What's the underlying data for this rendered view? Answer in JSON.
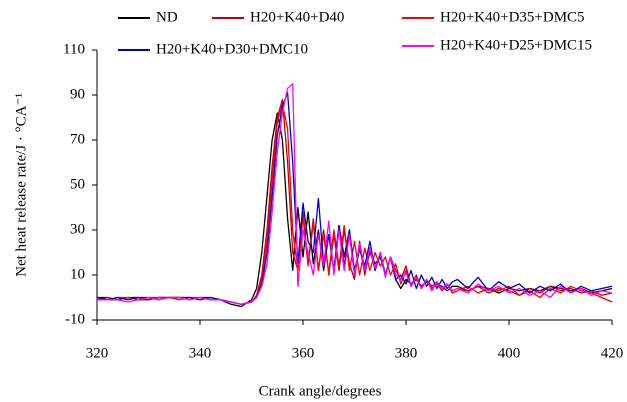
{
  "chart_data": {
    "type": "line",
    "x_label": "Crank angle/degrees",
    "y_label": "Net heat release rate/J · °CA⁻¹",
    "xlim": [
      320,
      420
    ],
    "xticks": [
      320,
      340,
      360,
      380,
      400,
      420
    ],
    "ylim": [
      -10,
      110
    ],
    "yticks": [
      -10,
      10,
      30,
      50,
      70,
      90,
      110
    ],
    "x": [
      320,
      322,
      324,
      326,
      328,
      330,
      332,
      334,
      336,
      338,
      340,
      342,
      344,
      346,
      348,
      350,
      351,
      352,
      353,
      354,
      355,
      356,
      357,
      358,
      359,
      360,
      361,
      362,
      363,
      364,
      365,
      366,
      367,
      368,
      369,
      370,
      371,
      372,
      373,
      374,
      375,
      376,
      377,
      378,
      379,
      380,
      381,
      382,
      383,
      384,
      385,
      386,
      387,
      388,
      389,
      390,
      392,
      394,
      396,
      398,
      400,
      402,
      404,
      406,
      408,
      410,
      412,
      414,
      416,
      418,
      420
    ],
    "series": [
      {
        "name": "ND",
        "color": "#000000",
        "values": [
          0,
          0,
          -1,
          0,
          0,
          -1,
          0,
          0,
          0,
          -1,
          0,
          0,
          -1,
          -3,
          -4,
          -1,
          4,
          20,
          45,
          70,
          82,
          70,
          35,
          12,
          40,
          18,
          38,
          15,
          30,
          12,
          28,
          12,
          32,
          18,
          30,
          10,
          22,
          12,
          20,
          15,
          18,
          10,
          18,
          8,
          4,
          8,
          6,
          8,
          5,
          7,
          4,
          6,
          5,
          3,
          5,
          5,
          3,
          5,
          4,
          2,
          4,
          3,
          4,
          3,
          5,
          4,
          3,
          4,
          2,
          3,
          4
        ]
      },
      {
        "name": "H20+K40+D40",
        "color": "#c00000",
        "values": [
          -1,
          0,
          -1,
          0,
          -1,
          -1,
          0,
          0,
          0,
          0,
          -1,
          0,
          -1,
          -2,
          -3,
          -2,
          1,
          10,
          30,
          58,
          80,
          88,
          60,
          20,
          12,
          38,
          15,
          35,
          12,
          30,
          10,
          28,
          12,
          30,
          15,
          8,
          25,
          10,
          22,
          12,
          20,
          10,
          18,
          12,
          8,
          14,
          5,
          10,
          4,
          8,
          5,
          7,
          4,
          6,
          3,
          4,
          3,
          5,
          2,
          4,
          3,
          1,
          4,
          2,
          5,
          3,
          4,
          2,
          3,
          1,
          2
        ]
      },
      {
        "name": "H20+K40+D35+DMC5",
        "color": "#ff0000",
        "values": [
          0,
          -1,
          0,
          0,
          -1,
          0,
          0,
          0,
          -1,
          0,
          0,
          -1,
          -1,
          -2,
          -3,
          -2,
          0,
          8,
          25,
          52,
          78,
          86,
          75,
          30,
          12,
          36,
          14,
          33,
          12,
          28,
          11,
          30,
          14,
          32,
          12,
          25,
          10,
          22,
          12,
          20,
          14,
          18,
          10,
          15,
          6,
          12,
          5,
          9,
          4,
          8,
          4,
          6,
          3,
          6,
          2,
          3,
          5,
          2,
          4,
          3,
          5,
          1,
          3,
          0,
          4,
          2,
          5,
          3,
          2,
          0,
          -2
        ]
      },
      {
        "name": "H20+K40+D30+DMC10",
        "color": "#0000cc",
        "values": [
          0,
          -1,
          0,
          -1,
          0,
          0,
          -1,
          0,
          0,
          0,
          -1,
          0,
          -1,
          -2,
          -3,
          -2,
          0,
          6,
          20,
          45,
          72,
          85,
          91,
          60,
          15,
          42,
          25,
          20,
          44,
          15,
          28,
          12,
          32,
          14,
          30,
          12,
          22,
          14,
          25,
          12,
          20,
          10,
          18,
          8,
          10,
          6,
          12,
          4,
          10,
          5,
          9,
          4,
          8,
          4,
          7,
          8,
          4,
          9,
          3,
          7,
          4,
          6,
          2,
          5,
          3,
          6,
          2,
          5,
          3,
          4,
          5
        ]
      },
      {
        "name": "H20+K40+D25+DMC15",
        "color": "#ff00ff",
        "values": [
          -1,
          -1,
          -1,
          -2,
          -1,
          0,
          -1,
          0,
          0,
          -1,
          0,
          -1,
          -1,
          -2,
          -3,
          -2,
          0,
          5,
          15,
          38,
          65,
          82,
          93,
          95,
          5,
          30,
          20,
          10,
          28,
          14,
          34,
          10,
          30,
          12,
          28,
          10,
          24,
          12,
          22,
          13,
          20,
          9,
          18,
          10,
          8,
          11,
          5,
          9,
          4,
          8,
          3,
          7,
          4,
          6,
          3,
          4,
          2,
          6,
          3,
          5,
          2,
          4,
          1,
          3,
          0,
          5,
          2,
          4,
          1,
          3,
          2
        ]
      }
    ]
  }
}
